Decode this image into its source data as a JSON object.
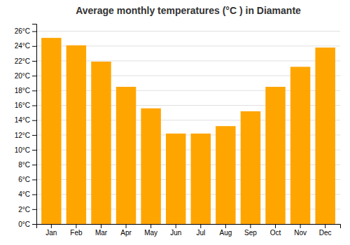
{
  "chart_data": {
    "type": "bar",
    "title": "Average monthly temperatures (°C ) in Diamante",
    "categories": [
      "Jan",
      "Feb",
      "Mar",
      "Apr",
      "May",
      "Jun",
      "Jul",
      "Aug",
      "Sep",
      "Oct",
      "Nov",
      "Dec"
    ],
    "values": [
      25.1,
      24.1,
      21.9,
      18.5,
      15.6,
      12.2,
      12.2,
      13.2,
      15.2,
      18.5,
      21.2,
      23.8
    ],
    "color": "#FFA500",
    "ylim": [
      0,
      27
    ],
    "yticks": [
      {
        "value": 0,
        "label": "0°C"
      },
      {
        "value": 2,
        "label": "2°C"
      },
      {
        "value": 4,
        "label": "4°C"
      },
      {
        "value": 6,
        "label": "6°C"
      },
      {
        "value": 8,
        "label": "8°C"
      },
      {
        "value": 10,
        "label": "10°C"
      },
      {
        "value": 12,
        "label": "12°C"
      },
      {
        "value": 14,
        "label": "14°C"
      },
      {
        "value": 16,
        "label": "16°C"
      },
      {
        "value": 18,
        "label": "18°C"
      },
      {
        "value": 20,
        "label": "20°C"
      },
      {
        "value": 22,
        "label": "22°C"
      },
      {
        "value": 24,
        "label": "24°C"
      },
      {
        "value": 26,
        "label": "26°C"
      }
    ],
    "grid": true
  }
}
